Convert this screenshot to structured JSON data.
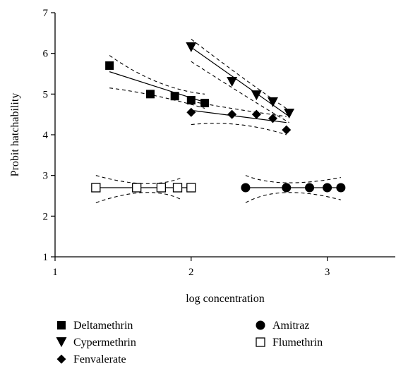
{
  "chart_data": {
    "type": "scatter",
    "xlabel": "log concentration",
    "ylabel": "Probit hatchability",
    "xlim": [
      1,
      3.5
    ],
    "ylim": [
      1,
      7
    ],
    "xticks": [
      1,
      2,
      3
    ],
    "yticks": [
      1,
      2,
      3,
      4,
      5,
      6,
      7
    ],
    "x_tick_labels": [
      "1",
      "2",
      "3"
    ],
    "y_tick_labels": [
      "1",
      "2",
      "3",
      "4",
      "5",
      "6",
      "7"
    ],
    "grid": false,
    "legend_position": "bottom",
    "series": [
      {
        "name": "Deltamethrin",
        "marker": "filled-square",
        "points": [
          [
            1.4,
            5.7
          ],
          [
            1.7,
            5.0
          ],
          [
            1.88,
            4.95
          ],
          [
            2.0,
            4.85
          ],
          [
            2.1,
            4.78
          ]
        ],
        "fit": [
          [
            1.4,
            5.55
          ],
          [
            2.1,
            4.8
          ]
        ],
        "ci_upper": [
          [
            1.4,
            5.95
          ],
          [
            1.75,
            5.3
          ],
          [
            2.1,
            5.0
          ]
        ],
        "ci_lower": [
          [
            1.4,
            5.15
          ],
          [
            1.75,
            4.95
          ],
          [
            2.1,
            4.65
          ]
        ]
      },
      {
        "name": "Cypermethrin",
        "marker": "filled-triangle-down",
        "points": [
          [
            2.0,
            6.15
          ],
          [
            2.3,
            5.3
          ],
          [
            2.48,
            4.97
          ],
          [
            2.6,
            4.8
          ],
          [
            2.72,
            4.52
          ]
        ],
        "fit": [
          [
            2.0,
            6.15
          ],
          [
            2.72,
            4.45
          ]
        ],
        "ci_upper": [
          [
            2.0,
            6.35
          ],
          [
            2.4,
            5.35
          ],
          [
            2.72,
            4.6
          ]
        ],
        "ci_lower": [
          [
            2.0,
            5.8
          ],
          [
            2.4,
            4.95
          ],
          [
            2.72,
            4.3
          ]
        ]
      },
      {
        "name": "Fenvalerate",
        "marker": "filled-diamond",
        "points": [
          [
            2.0,
            4.55
          ],
          [
            2.3,
            4.5
          ],
          [
            2.48,
            4.5
          ],
          [
            2.6,
            4.4
          ],
          [
            2.7,
            4.12
          ]
        ],
        "fit": [
          [
            2.0,
            4.6
          ],
          [
            2.7,
            4.3
          ]
        ],
        "ci_upper": [
          [
            2.0,
            4.82
          ],
          [
            2.35,
            4.62
          ],
          [
            2.7,
            4.45
          ]
        ],
        "ci_lower": [
          [
            2.0,
            4.25
          ],
          [
            2.35,
            4.25
          ],
          [
            2.7,
            4.0
          ]
        ]
      },
      {
        "name": "Amitraz",
        "marker": "filled-circle",
        "points": [
          [
            2.4,
            2.7
          ],
          [
            2.7,
            2.7
          ],
          [
            2.87,
            2.7
          ],
          [
            3.0,
            2.7
          ],
          [
            3.1,
            2.7
          ]
        ],
        "fit": [
          [
            2.4,
            2.7
          ],
          [
            3.1,
            2.7
          ]
        ],
        "ci_upper": [
          [
            2.4,
            3.0
          ],
          [
            2.7,
            2.82
          ],
          [
            3.1,
            2.95
          ]
        ],
        "ci_lower": [
          [
            2.4,
            2.33
          ],
          [
            2.7,
            2.58
          ],
          [
            3.1,
            2.4
          ]
        ]
      },
      {
        "name": "Flumethrin",
        "marker": "open-square",
        "points": [
          [
            1.3,
            2.7
          ],
          [
            1.6,
            2.7
          ],
          [
            1.78,
            2.7
          ],
          [
            1.9,
            2.7
          ],
          [
            2.0,
            2.7
          ]
        ],
        "fit": [
          [
            1.3,
            2.7
          ],
          [
            2.0,
            2.7
          ]
        ],
        "ci_upper": [
          [
            1.3,
            3.0
          ],
          [
            1.65,
            2.8
          ],
          [
            1.92,
            2.93
          ]
        ],
        "ci_lower": [
          [
            1.3,
            2.33
          ],
          [
            1.65,
            2.58
          ],
          [
            1.92,
            2.42
          ]
        ]
      }
    ]
  }
}
